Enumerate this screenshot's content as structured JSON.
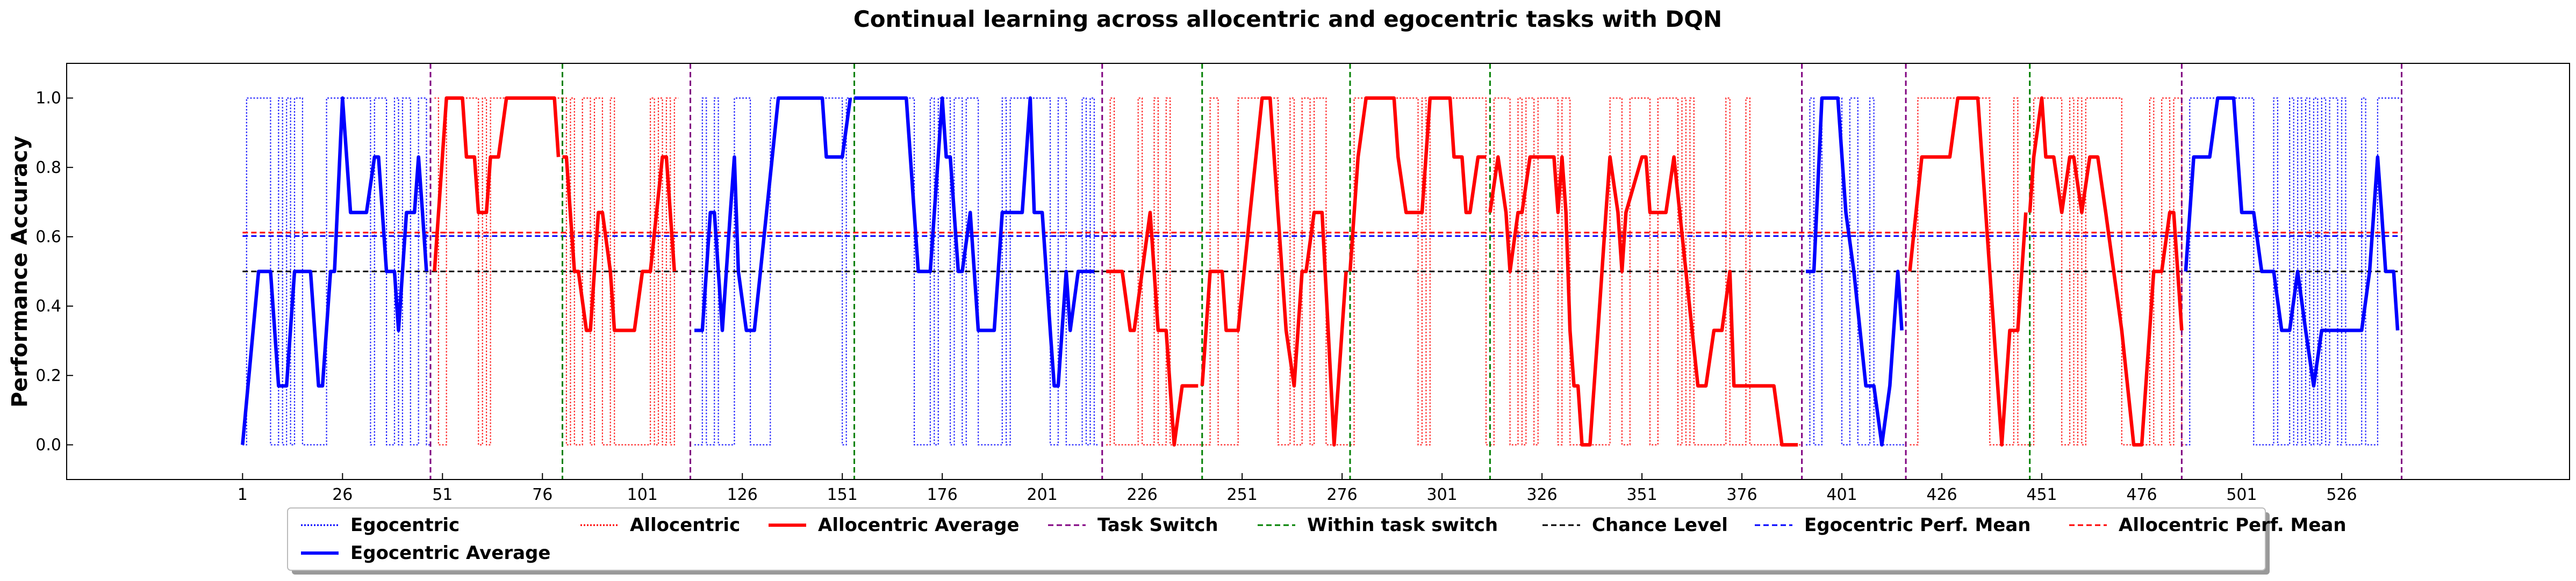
{
  "chart_data": {
    "type": "line",
    "title": "Continual learning across allocentric and egocentric tasks with DQN",
    "xlabel": "",
    "ylabel": "Performance Accuracy",
    "xlim": [
      -43,
      583
    ],
    "ylim": [
      -0.1,
      1.1
    ],
    "xticks": [
      1,
      26,
      51,
      76,
      101,
      126,
      151,
      176,
      201,
      226,
      251,
      276,
      301,
      326,
      351,
      376,
      401,
      426,
      451,
      476,
      501,
      526
    ],
    "yticks": [
      0.0,
      0.2,
      0.4,
      0.6,
      0.8,
      1.0
    ],
    "grid": false,
    "legend_position": "bottom",
    "legend": [
      {
        "key": "ego",
        "label": "Egocentric",
        "color": "#0000ff",
        "style": "dotted"
      },
      {
        "key": "allo",
        "label": "Allocentric",
        "color": "#ff0000",
        "style": "dotted"
      },
      {
        "key": "allo_avg",
        "label": "Allocentric Average",
        "color": "#ff0000",
        "style": "solid"
      },
      {
        "key": "task_switch",
        "label": "Task Switch",
        "color": "#800080",
        "style": "dashed"
      },
      {
        "key": "within",
        "label": "Within task switch",
        "color": "#008000",
        "style": "dashed"
      },
      {
        "key": "chance",
        "label": "Chance Level",
        "color": "#000000",
        "style": "dashed"
      },
      {
        "key": "ego_mean",
        "label": "Egocentric Perf. Mean",
        "color": "#0000ff",
        "style": "dashed"
      },
      {
        "key": "allo_mean",
        "label": "Allocentric Perf. Mean",
        "color": "#ff0000",
        "style": "dashed"
      },
      {
        "key": "ego_avg",
        "label": "Egocentric Average",
        "color": "#0000ff",
        "style": "solid"
      }
    ],
    "chance_level": 0.5,
    "egocentric_perf_mean": 0.602,
    "allocentric_perf_mean": 0.612,
    "task_switches": [
      48,
      113,
      216,
      391,
      417,
      486,
      541
    ],
    "within_task_switches": [
      81,
      154,
      241,
      278,
      313,
      448
    ],
    "segments": [
      {
        "task": "Egocentric",
        "x_start": 1,
        "points": [
          [
            1,
            0.0
          ],
          [
            5,
            0.5
          ],
          [
            8,
            0.5
          ],
          [
            10,
            0.17
          ],
          [
            12,
            0.17
          ],
          [
            14,
            0.5
          ],
          [
            18,
            0.5
          ],
          [
            20,
            0.17
          ],
          [
            21,
            0.17
          ],
          [
            23,
            0.5
          ],
          [
            24,
            0.5
          ],
          [
            26,
            1.0
          ],
          [
            28,
            0.67
          ],
          [
            32,
            0.67
          ],
          [
            34,
            0.83
          ],
          [
            35,
            0.83
          ],
          [
            37,
            0.5
          ],
          [
            39,
            0.5
          ],
          [
            40,
            0.33
          ],
          [
            42,
            0.67
          ],
          [
            44,
            0.67
          ],
          [
            45,
            0.83
          ],
          [
            46,
            0.67
          ],
          [
            47,
            0.5
          ]
        ]
      },
      {
        "task": "Allocentric",
        "x_start": 49,
        "points": [
          [
            49,
            0.5
          ],
          [
            52,
            1.0
          ],
          [
            56,
            1.0
          ],
          [
            57,
            0.83
          ],
          [
            59,
            0.83
          ],
          [
            60,
            0.67
          ],
          [
            62,
            0.67
          ],
          [
            63,
            0.83
          ],
          [
            65,
            0.83
          ],
          [
            67,
            1.0
          ],
          [
            79,
            1.0
          ],
          [
            80,
            0.83
          ]
        ]
      },
      {
        "task": "Allocentric",
        "x_start": 81,
        "points": [
          [
            81,
            0.83
          ],
          [
            82,
            0.83
          ],
          [
            84,
            0.5
          ],
          [
            85,
            0.5
          ],
          [
            87,
            0.33
          ],
          [
            88,
            0.33
          ],
          [
            90,
            0.67
          ],
          [
            91,
            0.67
          ],
          [
            93,
            0.5
          ],
          [
            94,
            0.33
          ],
          [
            99,
            0.33
          ],
          [
            101,
            0.5
          ],
          [
            103,
            0.5
          ],
          [
            106,
            0.83
          ],
          [
            107,
            0.83
          ],
          [
            109,
            0.5
          ]
        ]
      },
      {
        "task": "Egocentric",
        "x_start": 114,
        "points": [
          [
            114,
            0.33
          ],
          [
            116,
            0.33
          ],
          [
            117,
            0.5
          ],
          [
            118,
            0.67
          ],
          [
            119,
            0.67
          ],
          [
            121,
            0.33
          ],
          [
            123,
            0.67
          ],
          [
            124,
            0.83
          ],
          [
            125,
            0.5
          ],
          [
            127,
            0.33
          ],
          [
            129,
            0.33
          ],
          [
            135,
            1.0
          ],
          [
            146,
            1.0
          ],
          [
            147,
            0.83
          ],
          [
            151,
            0.83
          ],
          [
            153,
            1.0
          ]
        ]
      },
      {
        "task": "Egocentric",
        "x_start": 154,
        "points": [
          [
            154,
            1.0
          ],
          [
            167,
            1.0
          ],
          [
            170,
            0.5
          ],
          [
            173,
            0.5
          ],
          [
            176,
            1.0
          ],
          [
            177,
            0.83
          ],
          [
            178,
            0.83
          ],
          [
            180,
            0.5
          ],
          [
            181,
            0.5
          ],
          [
            183,
            0.67
          ],
          [
            185,
            0.33
          ],
          [
            189,
            0.33
          ],
          [
            191,
            0.67
          ],
          [
            196,
            0.67
          ],
          [
            198,
            1.0
          ],
          [
            199,
            0.67
          ],
          [
            201,
            0.67
          ],
          [
            203,
            0.33
          ],
          [
            204,
            0.17
          ],
          [
            205,
            0.17
          ],
          [
            207,
            0.5
          ],
          [
            208,
            0.33
          ],
          [
            210,
            0.5
          ],
          [
            214,
            0.5
          ]
        ]
      },
      {
        "task": "Allocentric",
        "x_start": 217,
        "points": [
          [
            217,
            0.5
          ],
          [
            221,
            0.5
          ],
          [
            223,
            0.33
          ],
          [
            224,
            0.33
          ],
          [
            226,
            0.5
          ],
          [
            228,
            0.67
          ],
          [
            229,
            0.5
          ],
          [
            230,
            0.33
          ],
          [
            232,
            0.33
          ],
          [
            234,
            0.0
          ],
          [
            236,
            0.17
          ],
          [
            240,
            0.17
          ]
        ]
      },
      {
        "task": "Allocentric",
        "x_start": 241,
        "points": [
          [
            241,
            0.17
          ],
          [
            243,
            0.5
          ],
          [
            246,
            0.5
          ],
          [
            247,
            0.33
          ],
          [
            250,
            0.33
          ],
          [
            253,
            0.67
          ],
          [
            256,
            1.0
          ],
          [
            258,
            1.0
          ],
          [
            259,
            0.83
          ],
          [
            262,
            0.33
          ],
          [
            264,
            0.17
          ],
          [
            266,
            0.5
          ],
          [
            267,
            0.5
          ],
          [
            269,
            0.67
          ],
          [
            271,
            0.67
          ],
          [
            274,
            0.0
          ],
          [
            277,
            0.5
          ]
        ]
      },
      {
        "task": "Allocentric",
        "x_start": 278,
        "points": [
          [
            278,
            0.5
          ],
          [
            280,
            0.83
          ],
          [
            282,
            1.0
          ],
          [
            289,
            1.0
          ],
          [
            290,
            0.83
          ],
          [
            292,
            0.67
          ],
          [
            296,
            0.67
          ],
          [
            298,
            1.0
          ],
          [
            303,
            1.0
          ],
          [
            304,
            0.83
          ],
          [
            306,
            0.83
          ],
          [
            307,
            0.67
          ],
          [
            308,
            0.67
          ],
          [
            310,
            0.83
          ],
          [
            312,
            0.83
          ]
        ]
      },
      {
        "task": "Allocentric",
        "x_start": 313,
        "points": [
          [
            313,
            0.67
          ],
          [
            315,
            0.83
          ],
          [
            317,
            0.67
          ],
          [
            318,
            0.5
          ],
          [
            320,
            0.67
          ],
          [
            321,
            0.67
          ],
          [
            323,
            0.83
          ],
          [
            329,
            0.83
          ],
          [
            330,
            0.67
          ],
          [
            331,
            0.83
          ],
          [
            332,
            0.67
          ],
          [
            333,
            0.33
          ],
          [
            334,
            0.17
          ],
          [
            335,
            0.17
          ],
          [
            336,
            0.0
          ],
          [
            338,
            0.0
          ],
          [
            340,
            0.33
          ],
          [
            342,
            0.67
          ],
          [
            343,
            0.83
          ],
          [
            345,
            0.67
          ],
          [
            346,
            0.5
          ],
          [
            347,
            0.67
          ],
          [
            351,
            0.83
          ],
          [
            352,
            0.83
          ],
          [
            353,
            0.67
          ],
          [
            357,
            0.67
          ],
          [
            359,
            0.83
          ],
          [
            362,
            0.5
          ],
          [
            365,
            0.17
          ],
          [
            367,
            0.17
          ],
          [
            369,
            0.33
          ],
          [
            371,
            0.33
          ],
          [
            373,
            0.5
          ],
          [
            374,
            0.17
          ],
          [
            384,
            0.17
          ],
          [
            386,
            0.0
          ],
          [
            390,
            0.0
          ]
        ]
      },
      {
        "task": "Egocentric",
        "x_start": 392,
        "points": [
          [
            392,
            0.5
          ],
          [
            394,
            0.5
          ],
          [
            396,
            1.0
          ],
          [
            400,
            1.0
          ],
          [
            402,
            0.67
          ],
          [
            404,
            0.5
          ],
          [
            407,
            0.17
          ],
          [
            409,
            0.17
          ],
          [
            411,
            0.0
          ],
          [
            413,
            0.17
          ],
          [
            415,
            0.5
          ],
          [
            416,
            0.33
          ]
        ]
      },
      {
        "task": "Allocentric",
        "x_start": 418,
        "points": [
          [
            418,
            0.5
          ],
          [
            421,
            0.83
          ],
          [
            428,
            0.83
          ],
          [
            430,
            1.0
          ],
          [
            435,
            1.0
          ],
          [
            441,
            0.0
          ],
          [
            443,
            0.33
          ],
          [
            445,
            0.33
          ],
          [
            447,
            0.67
          ]
        ]
      },
      {
        "task": "Allocentric",
        "x_start": 448,
        "points": [
          [
            448,
            0.67
          ],
          [
            449,
            0.83
          ],
          [
            451,
            1.0
          ],
          [
            452,
            0.83
          ],
          [
            454,
            0.83
          ],
          [
            456,
            0.67
          ],
          [
            458,
            0.83
          ],
          [
            459,
            0.83
          ],
          [
            461,
            0.67
          ],
          [
            463,
            0.83
          ],
          [
            465,
            0.83
          ],
          [
            467,
            0.67
          ],
          [
            469,
            0.5
          ],
          [
            471,
            0.33
          ],
          [
            474,
            0.0
          ],
          [
            476,
            0.0
          ],
          [
            479,
            0.5
          ],
          [
            481,
            0.5
          ],
          [
            483,
            0.67
          ],
          [
            484,
            0.67
          ],
          [
            486,
            0.33
          ]
        ]
      },
      {
        "task": "Egocentric",
        "x_start": 487,
        "points": [
          [
            487,
            0.5
          ],
          [
            489,
            0.83
          ],
          [
            493,
            0.83
          ],
          [
            495,
            1.0
          ],
          [
            499,
            1.0
          ],
          [
            501,
            0.67
          ],
          [
            504,
            0.67
          ],
          [
            506,
            0.5
          ],
          [
            509,
            0.5
          ],
          [
            511,
            0.33
          ],
          [
            513,
            0.33
          ],
          [
            515,
            0.5
          ],
          [
            517,
            0.33
          ],
          [
            519,
            0.17
          ],
          [
            521,
            0.33
          ],
          [
            531,
            0.33
          ],
          [
            533,
            0.5
          ],
          [
            535,
            0.83
          ],
          [
            536,
            0.67
          ],
          [
            537,
            0.5
          ],
          [
            539,
            0.5
          ],
          [
            540,
            0.33
          ]
        ]
      }
    ]
  }
}
